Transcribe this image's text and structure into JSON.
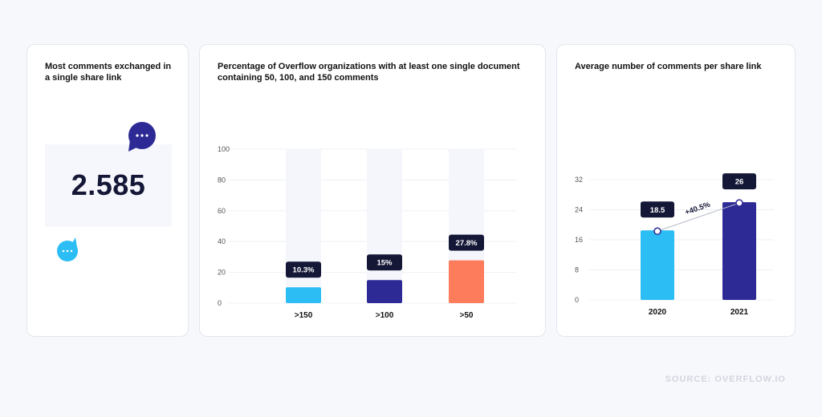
{
  "cards": {
    "stat": {
      "title": "Most comments exchanged in a single share link",
      "value": "2.585"
    },
    "bars": {
      "title": "Percentage of Overflow organizations with at least one single document containing 50, 100, and 150 comments"
    },
    "avg": {
      "title": "Average number of comments per share link"
    }
  },
  "icons": {
    "large_bubble": "speech-bubble-icon",
    "small_bubble": "speech-bubble-icon"
  },
  "colors": {
    "light_blue": "#2bbdf4",
    "navy": "#2d2a96",
    "orange": "#fd7c5b",
    "label_bg": "#151737"
  },
  "chart_data": [
    {
      "type": "bar",
      "title": "Percentage of Overflow organizations with at least one single document containing 50, 100, and 150 comments",
      "categories": [
        ">150",
        ">100",
        ">50"
      ],
      "values": [
        10.3,
        15,
        27.8
      ],
      "data_labels": [
        "10.3%",
        "15%",
        "27.8%"
      ],
      "bar_colors": [
        "#2bbdf4",
        "#2d2a96",
        "#fd7c5b"
      ],
      "ylim": [
        0,
        100
      ],
      "yticks": [
        0,
        20,
        40,
        60,
        80,
        100
      ],
      "background_columns": true,
      "grid": true
    },
    {
      "type": "bar",
      "title": "Average number of comments per share link",
      "categories": [
        "2020",
        "2021"
      ],
      "values": [
        18.5,
        26
      ],
      "data_labels": [
        "18.5",
        "26"
      ],
      "bar_colors": [
        "#2bbdf4",
        "#2d2a96"
      ],
      "ylim": [
        0,
        32
      ],
      "yticks": [
        0,
        8,
        16,
        24,
        32
      ],
      "annotation": "+40.5%",
      "grid": true
    }
  ],
  "footer": {
    "source": "SOURCE: OVERFLOW.IO"
  }
}
